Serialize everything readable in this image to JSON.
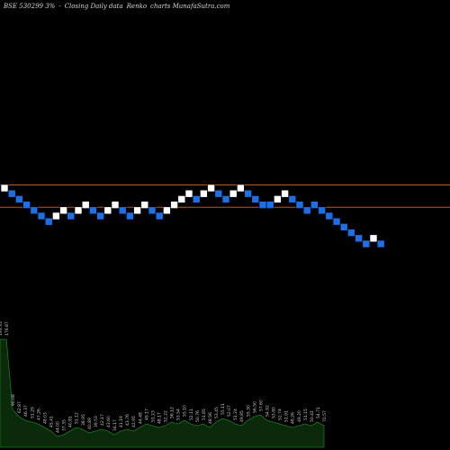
{
  "header": {
    "symbol": "BSE 530299 3%",
    "sep": "-",
    "desc": "Closing Daily data",
    "chart_kind": "Renko",
    "site": "charts MunafaSutra.com"
  },
  "colors": {
    "background": "#000000",
    "brick_up": "#ffffff",
    "brick_down": "#1e6fe6",
    "brick_border": "#000000",
    "hline": "#b35a1f",
    "volume_fill": "#0b2a0b",
    "volume_line": "#1c7a1c",
    "label": "#cccccc"
  },
  "chart_data": {
    "type": "renko",
    "bricks": [
      {
        "dir": "up",
        "level": 0
      },
      {
        "dir": "down",
        "level": -1
      },
      {
        "dir": "down",
        "level": -2
      },
      {
        "dir": "down",
        "level": -3
      },
      {
        "dir": "down",
        "level": -4
      },
      {
        "dir": "down",
        "level": -5
      },
      {
        "dir": "down",
        "level": -6
      },
      {
        "dir": "up",
        "level": -5
      },
      {
        "dir": "up",
        "level": -4
      },
      {
        "dir": "down",
        "level": -5
      },
      {
        "dir": "up",
        "level": -4
      },
      {
        "dir": "up",
        "level": -3
      },
      {
        "dir": "down",
        "level": -4
      },
      {
        "dir": "down",
        "level": -5
      },
      {
        "dir": "up",
        "level": -4
      },
      {
        "dir": "up",
        "level": -3
      },
      {
        "dir": "down",
        "level": -4
      },
      {
        "dir": "down",
        "level": -5
      },
      {
        "dir": "up",
        "level": -4
      },
      {
        "dir": "up",
        "level": -3
      },
      {
        "dir": "down",
        "level": -4
      },
      {
        "dir": "down",
        "level": -5
      },
      {
        "dir": "up",
        "level": -4
      },
      {
        "dir": "up",
        "level": -3
      },
      {
        "dir": "up",
        "level": -2
      },
      {
        "dir": "up",
        "level": -1
      },
      {
        "dir": "down",
        "level": -2
      },
      {
        "dir": "up",
        "level": -1
      },
      {
        "dir": "up",
        "level": 0
      },
      {
        "dir": "down",
        "level": -1
      },
      {
        "dir": "down",
        "level": -2
      },
      {
        "dir": "up",
        "level": -1
      },
      {
        "dir": "up",
        "level": 0
      },
      {
        "dir": "down",
        "level": -1
      },
      {
        "dir": "down",
        "level": -2
      },
      {
        "dir": "down",
        "level": -3
      },
      {
        "dir": "down",
        "level": -3
      },
      {
        "dir": "up",
        "level": -2
      },
      {
        "dir": "up",
        "level": -1
      },
      {
        "dir": "down",
        "level": -2
      },
      {
        "dir": "down",
        "level": -3
      },
      {
        "dir": "down",
        "level": -4
      },
      {
        "dir": "down",
        "level": -3
      },
      {
        "dir": "down",
        "level": -4
      },
      {
        "dir": "down",
        "level": -5
      },
      {
        "dir": "down",
        "level": -6
      },
      {
        "dir": "down",
        "level": -7
      },
      {
        "dir": "down",
        "level": -8
      },
      {
        "dir": "down",
        "level": -9
      },
      {
        "dir": "down",
        "level": -10
      },
      {
        "dir": "up",
        "level": -9
      },
      {
        "dir": "down",
        "level": -10
      }
    ],
    "reference_levels": [
      0,
      -4
    ],
    "volume_labels": [
      "193.35",
      "176.87",
      "90.08",
      "62.87",
      "46.37",
      "51.29",
      "47.26",
      "48.03",
      "45.41",
      "44.00",
      "37.35",
      "40.81",
      "51.12",
      "38.95",
      "40.89",
      "39.53",
      "42.17",
      "43.60",
      "34.17",
      "41.19",
      "43.76",
      "42.95",
      "44.48",
      "49.17",
      "51.23",
      "48.17",
      "52.22",
      "56.12",
      "53.54",
      "55.10",
      "52.11",
      "50.76",
      "51.85",
      "48.56",
      "53.45",
      "55.11",
      "52.07",
      "51.24",
      "49.85",
      "55.30",
      "56.50",
      "57.60",
      "54.92",
      "53.80",
      "52.74",
      "51.91",
      "48.26",
      "49.20",
      "51.15",
      "50.41",
      "54.71",
      "70.57"
    ],
    "volume_values": [
      120,
      120,
      42,
      34,
      30,
      28,
      26,
      22,
      18,
      12,
      14,
      18,
      22,
      20,
      16,
      18,
      20,
      18,
      14,
      18,
      20,
      18,
      22,
      26,
      24,
      22,
      24,
      28,
      26,
      30,
      26,
      24,
      26,
      22,
      28,
      32,
      30,
      26,
      24,
      30,
      34,
      36,
      30,
      28,
      26,
      24,
      22,
      24,
      26,
      24,
      28,
      24
    ]
  }
}
